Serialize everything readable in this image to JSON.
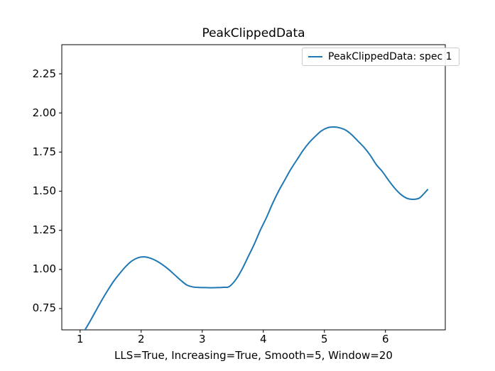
{
  "figure": {
    "background": "#ffffff",
    "text_color": "#000000",
    "spine_color": "#000000"
  },
  "chart_data": {
    "type": "line",
    "title": "PeakClippedData",
    "xlabel": "LLS=True, Increasing=True, Smooth=5, Window=20",
    "ylabel": "",
    "grid": false,
    "xlim": [
      0.7,
      6.98
    ],
    "ylim": [
      0.614,
      2.436
    ],
    "xticks": {
      "values": [
        1,
        2,
        3,
        4,
        5,
        6
      ],
      "labels": [
        "1",
        "2",
        "3",
        "4",
        "5",
        "6"
      ]
    },
    "yticks": {
      "values": [
        0.75,
        1.0,
        1.25,
        1.5,
        1.75,
        2.0,
        2.25
      ],
      "labels": [
        "0.75",
        "1.00",
        "1.25",
        "1.50",
        "1.75",
        "2.00",
        "2.25"
      ]
    },
    "legend": {
      "position": "upper right",
      "entries": [
        "PeakClippedData: spec 1"
      ]
    },
    "series": [
      {
        "name": "PeakClippedData: spec 1",
        "color": "#1f77b4",
        "line_width": 2,
        "x": [
          1.08,
          1.15,
          1.25,
          1.35,
          1.45,
          1.55,
          1.65,
          1.75,
          1.85,
          1.95,
          2.05,
          2.15,
          2.25,
          2.35,
          2.45,
          2.55,
          2.65,
          2.75,
          2.85,
          2.95,
          3.05,
          3.15,
          3.25,
          3.35,
          3.44,
          3.55,
          3.65,
          3.75,
          3.85,
          3.95,
          4.05,
          4.15,
          4.25,
          4.35,
          4.45,
          4.55,
          4.65,
          4.75,
          4.85,
          4.95,
          5.05,
          5.15,
          5.25,
          5.35,
          5.45,
          5.55,
          5.65,
          5.75,
          5.85,
          5.95,
          6.05,
          6.15,
          6.25,
          6.35,
          6.45,
          6.55,
          6.62,
          6.69
        ],
        "y": [
          0.614,
          0.66,
          0.73,
          0.8,
          0.865,
          0.925,
          0.975,
          1.02,
          1.055,
          1.075,
          1.08,
          1.072,
          1.055,
          1.03,
          1.0,
          0.965,
          0.93,
          0.9,
          0.888,
          0.885,
          0.884,
          0.883,
          0.884,
          0.886,
          0.89,
          0.935,
          1.0,
          1.08,
          1.16,
          1.25,
          1.33,
          1.42,
          1.5,
          1.57,
          1.64,
          1.7,
          1.76,
          1.81,
          1.85,
          1.885,
          1.905,
          1.91,
          1.905,
          1.89,
          1.86,
          1.82,
          1.78,
          1.73,
          1.67,
          1.625,
          1.57,
          1.52,
          1.48,
          1.455,
          1.448,
          1.455,
          1.48,
          1.51
        ],
        "key_points": {
          "first_local_max": [
            2.03,
            1.08
          ],
          "plateau_value": 0.885,
          "global_max": [
            5.15,
            1.91
          ],
          "right_local_min": [
            6.49,
            1.45
          ],
          "end_point": [
            6.69,
            1.51
          ]
        }
      }
    ]
  }
}
